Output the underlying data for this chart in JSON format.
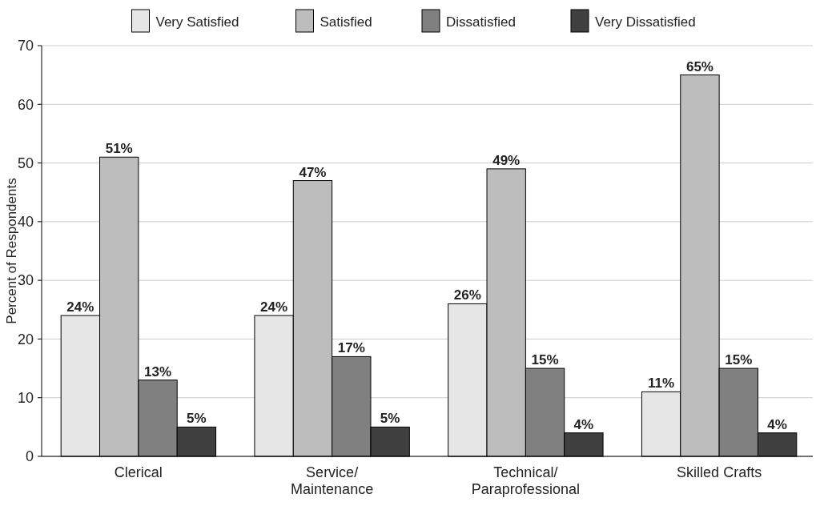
{
  "chart_data": {
    "type": "bar",
    "ylabel": "Percent of Respondents",
    "categories": [
      "Clerical",
      "Service/\nMaintenance",
      "Technical/\nParaprofessional",
      "Skilled Crafts"
    ],
    "series": [
      {
        "name": "Very Satisfied",
        "color": "#e6e6e6",
        "values": [
          24,
          24,
          26,
          11
        ],
        "value_labels": [
          "24%",
          "24%",
          "26%",
          "11%"
        ]
      },
      {
        "name": "Satisfied",
        "color": "#bdbdbd",
        "values": [
          51,
          47,
          49,
          65
        ],
        "value_labels": [
          "51%",
          "47%",
          "49%",
          "65%"
        ]
      },
      {
        "name": "Dissatisfied",
        "color": "#808080",
        "values": [
          13,
          17,
          15,
          15
        ],
        "value_labels": [
          "13%",
          "17%",
          "15%",
          "15%"
        ]
      },
      {
        "name": "Very Dissatisfied",
        "color": "#404040",
        "values": [
          5,
          5,
          4,
          4
        ],
        "value_labels": [
          "5%",
          "5%",
          "4%",
          "4%"
        ]
      }
    ],
    "ylim": [
      0,
      70
    ],
    "yticks": [
      0,
      10,
      20,
      30,
      40,
      50,
      60,
      70
    ],
    "grid": "y",
    "legend": "top"
  }
}
